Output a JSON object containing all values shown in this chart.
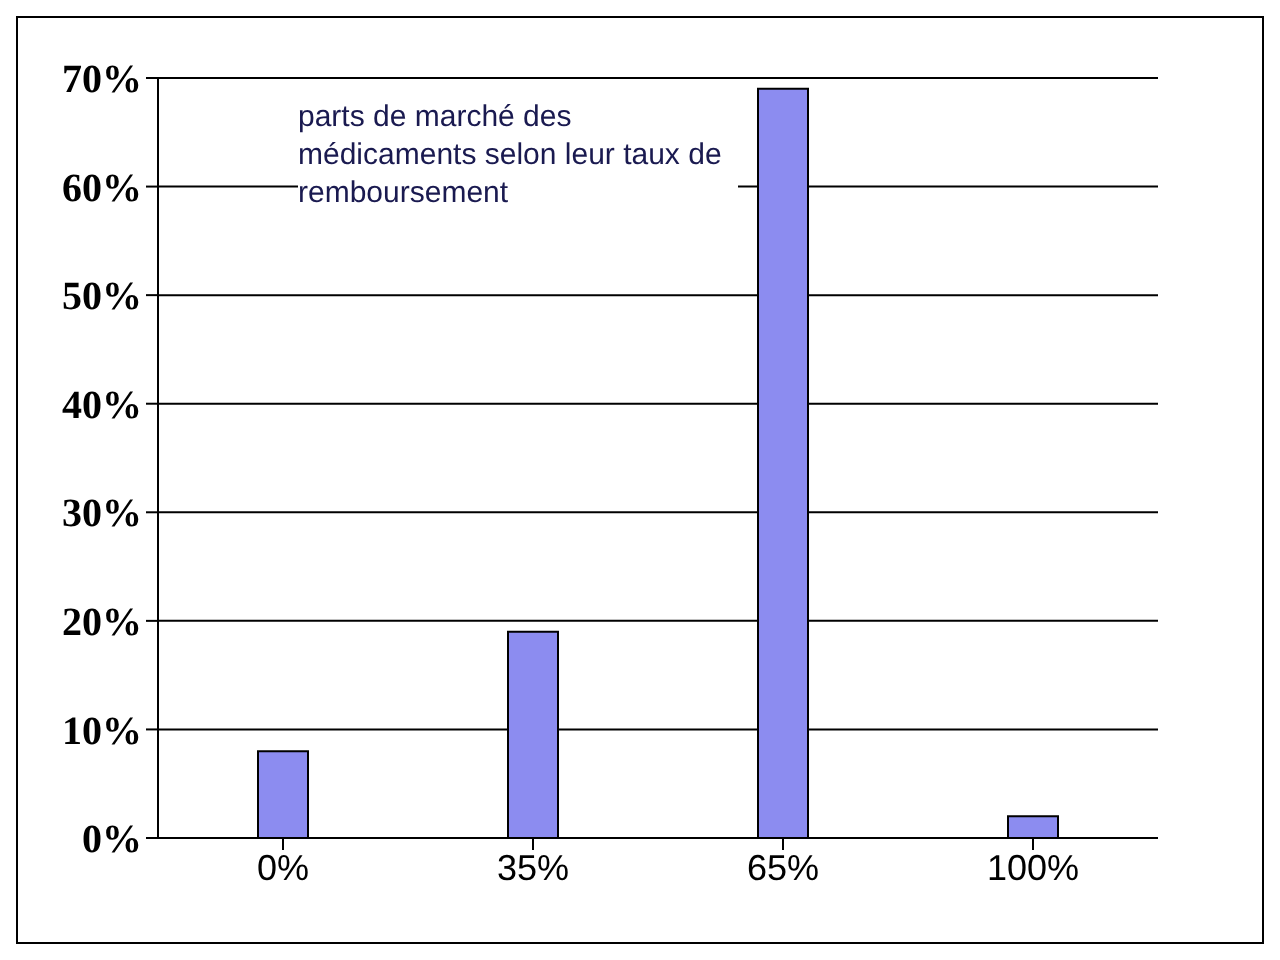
{
  "chart_data": {
    "type": "bar",
    "title": "parts de marché des médicaments selon leur taux de remboursement",
    "categories": [
      "0%",
      "35%",
      "65%",
      "100%"
    ],
    "values": [
      8,
      19,
      69,
      2
    ],
    "color": "#8c8cf0",
    "ylim": [
      0,
      70
    ],
    "yticks": [
      {
        "value": 0,
        "label": "0%"
      },
      {
        "value": 10,
        "label": "10%"
      },
      {
        "value": 20,
        "label": "20%"
      },
      {
        "value": 30,
        "label": "30%"
      },
      {
        "value": 40,
        "label": "40%"
      },
      {
        "value": 50,
        "label": "50%"
      },
      {
        "value": 60,
        "label": "60%"
      },
      {
        "value": 70,
        "label": "70%"
      }
    ],
    "grid": "y"
  }
}
